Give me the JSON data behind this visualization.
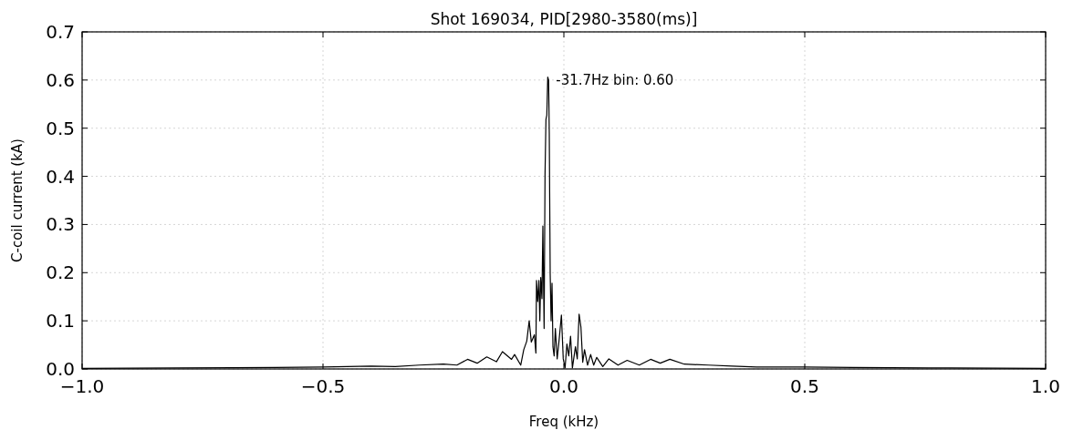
{
  "chart_data": {
    "type": "line",
    "title": "Shot 169034, PID[2980-3580(ms)]",
    "xlabel": "Freq (kHz)",
    "ylabel": "C-coil current (kA)",
    "xlim": [
      -1.0,
      1.0
    ],
    "xticks": [
      {
        "value": -1.0,
        "label": "−1.0"
      },
      {
        "value": -0.5,
        "label": "−0.5"
      },
      {
        "value": 0.0,
        "label": "0.0"
      },
      {
        "value": 0.5,
        "label": "0.5"
      },
      {
        "value": 1.0,
        "label": "1.0"
      }
    ],
    "ylim": [
      0,
      0.7
    ],
    "yticks": [
      {
        "value": 0,
        "label": "0.0"
      },
      {
        "value": 0.1,
        "label": "0.1"
      },
      {
        "value": 0.2,
        "label": "0.2"
      },
      {
        "value": 0.3,
        "label": "0.3"
      },
      {
        "value": 0.4,
        "label": "0.4"
      },
      {
        "value": 0.5,
        "label": "0.5"
      },
      {
        "value": 0.6,
        "label": "0.6"
      },
      {
        "value": 0.7,
        "label": "0.7"
      }
    ],
    "grid": true,
    "line_style": "solid",
    "annotations": [
      {
        "text": "-31.7Hz bin: 0.60",
        "x": -0.0317,
        "y": 0.6
      }
    ],
    "series": [
      {
        "color": "#000000",
        "x": [
          -1.0,
          -0.8,
          -0.6,
          -0.5,
          -0.4,
          -0.35,
          -0.3,
          -0.25,
          -0.222,
          -0.2,
          -0.18,
          -0.16,
          -0.14,
          -0.1275,
          -0.1086,
          -0.1023,
          -0.0896,
          -0.0833,
          -0.077,
          -0.072,
          -0.0676,
          -0.0612,
          -0.0581,
          -0.0568,
          -0.0543,
          -0.0518,
          -0.0499,
          -0.048,
          -0.0455,
          -0.0436,
          -0.041,
          -0.0391,
          -0.0372,
          -0.0354,
          -0.0335,
          -0.0317,
          -0.0303,
          -0.0284,
          -0.0265,
          -0.0246,
          -0.0227,
          -0.0202,
          -0.0177,
          -0.0139,
          -0.0101,
          -0.0051,
          -0.0013,
          0.0025,
          0.0063,
          0.0101,
          0.0139,
          0.0177,
          0.024,
          0.0278,
          0.0316,
          0.0354,
          0.0391,
          0.0429,
          0.0492,
          0.0556,
          0.0619,
          0.0682,
          0.0808,
          0.0934,
          0.1124,
          0.1313,
          0.1566,
          0.18,
          0.2,
          0.22,
          0.25,
          0.3,
          0.35,
          0.4,
          0.5,
          0.6,
          0.8,
          1.0
        ],
        "values": [
          0.001,
          0.002,
          0.003,
          0.004,
          0.006,
          0.005,
          0.008,
          0.01,
          0.008,
          0.02,
          0.012,
          0.025,
          0.015,
          0.036,
          0.02,
          0.03,
          0.008,
          0.04,
          0.058,
          0.1,
          0.056,
          0.071,
          0.033,
          0.184,
          0.14,
          0.184,
          0.1,
          0.19,
          0.146,
          0.297,
          0.084,
          0.404,
          0.518,
          0.527,
          0.606,
          0.6,
          0.49,
          0.197,
          0.1,
          0.178,
          0.046,
          0.027,
          0.084,
          0.021,
          0.058,
          0.112,
          0.021,
          0.002,
          0.052,
          0.027,
          0.068,
          0.002,
          0.046,
          0.021,
          0.114,
          0.087,
          0.014,
          0.04,
          0.008,
          0.03,
          0.008,
          0.024,
          0.005,
          0.021,
          0.008,
          0.018,
          0.008,
          0.02,
          0.012,
          0.02,
          0.01,
          0.008,
          0.006,
          0.004,
          0.004,
          0.003,
          0.002,
          0.001
        ]
      }
    ]
  }
}
